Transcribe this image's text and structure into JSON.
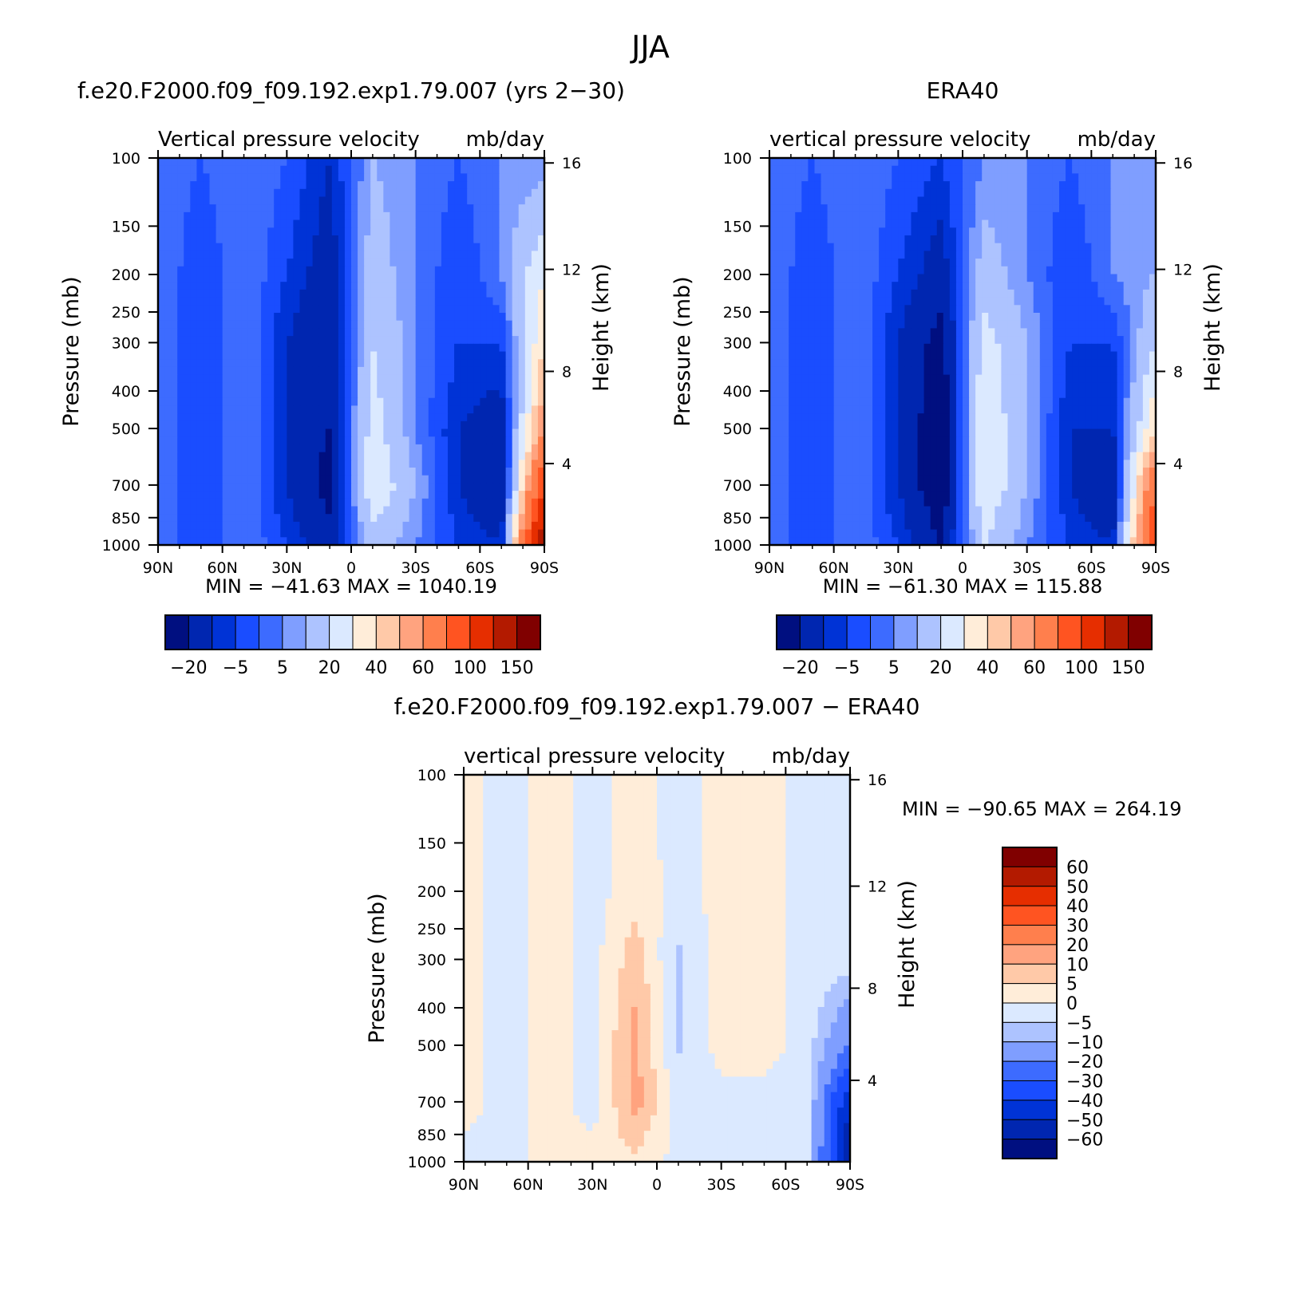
{
  "figure_title": "JJA",
  "palettes": {
    "abs": [
      "#000f80",
      "#0026b0",
      "#0033d6",
      "#1a4dff",
      "#3d6bff",
      "#7f9eff",
      "#adc3ff",
      "#dbe9ff",
      "#ffedd9",
      "#ffc9a8",
      "#ffa37f",
      "#ff7f4d",
      "#ff5421",
      "#e62e00",
      "#b31a00",
      "#800000"
    ],
    "diff": [
      "#000f80",
      "#0026b0",
      "#0033d6",
      "#1a4dff",
      "#3d6bff",
      "#7f9eff",
      "#adc3ff",
      "#dbe9ff",
      "#ffedd9",
      "#ffc9a8",
      "#ffa37f",
      "#ff7f4d",
      "#ff5421",
      "#e62e00",
      "#b31a00",
      "#800000"
    ]
  },
  "chart_data": [
    {
      "type": "heatmap",
      "title": "f.e20.F2000.f09_f09.192.exp1.79.007 (yrs 2−30)",
      "variable": "Vertical pressure velocity",
      "units": "mb/day",
      "xlabel": "",
      "ylabel": "Pressure (mb)",
      "y2label": "Height (km)",
      "x_ticks": [
        "90N",
        "60N",
        "30N",
        "0",
        "30S",
        "60S",
        "90S"
      ],
      "y_ticks": [
        100,
        150,
        200,
        250,
        300,
        400,
        500,
        700,
        850,
        1000
      ],
      "y2_ticks": [
        16,
        12,
        8,
        4
      ],
      "stats": "MIN = −41.63   MAX = 1040.19",
      "min": -41.63,
      "max": 1040.19,
      "colorbar_orientation": "horizontal",
      "colorbar_labels": [
        "−20",
        "−5",
        "5",
        "20",
        "40",
        "60",
        "100",
        "150"
      ],
      "colors": "abs",
      "field": {
        "x": [
          90,
          70,
          50,
          30,
          10,
          -10,
          -30,
          -50,
          -70,
          -90
        ],
        "p": [
          100,
          200,
          300,
          500,
          700,
          1000
        ],
        "values": [
          [
            5,
            0,
            5,
            0,
            -10,
            10,
            5,
            0,
            5,
            5
          ],
          [
            5,
            -5,
            5,
            -5,
            -15,
            15,
            5,
            -5,
            5,
            30
          ],
          [
            5,
            -5,
            5,
            -10,
            -20,
            20,
            5,
            -5,
            -5,
            40
          ],
          [
            5,
            -5,
            5,
            -10,
            -20,
            25,
            5,
            -10,
            -15,
            60
          ],
          [
            5,
            -5,
            5,
            -10,
            -25,
            30,
            10,
            -10,
            -20,
            100
          ],
          [
            5,
            -5,
            5,
            -5,
            -15,
            15,
            5,
            -5,
            -10,
            150
          ]
        ]
      }
    },
    {
      "type": "heatmap",
      "title": "ERA40",
      "variable": "vertical pressure velocity",
      "units": "mb/day",
      "xlabel": "",
      "ylabel": "Pressure (mb)",
      "y2label": "Height (km)",
      "x_ticks": [
        "90N",
        "60N",
        "30N",
        "0",
        "30S",
        "60S",
        "90S"
      ],
      "y_ticks": [
        100,
        150,
        200,
        250,
        300,
        400,
        500,
        700,
        850,
        1000
      ],
      "y2_ticks": [
        16,
        12,
        8,
        4
      ],
      "stats": "MIN = −61.30   MAX = 115.88",
      "min": -61.3,
      "max": 115.88,
      "colorbar_orientation": "horizontal",
      "colorbar_labels": [
        "−20",
        "−5",
        "5",
        "20",
        "40",
        "60",
        "100",
        "150"
      ],
      "colors": "abs",
      "field": {
        "x": [
          90,
          70,
          50,
          30,
          10,
          -10,
          -30,
          -50,
          -70,
          -90
        ],
        "p": [
          100,
          200,
          300,
          500,
          700,
          1000
        ],
        "values": [
          [
            5,
            0,
            5,
            0,
            -5,
            5,
            5,
            0,
            5,
            5
          ],
          [
            5,
            -5,
            5,
            -5,
            -15,
            15,
            5,
            -5,
            5,
            10
          ],
          [
            5,
            -5,
            5,
            -10,
            -25,
            25,
            10,
            -5,
            -5,
            20
          ],
          [
            5,
            -5,
            5,
            -10,
            -30,
            30,
            10,
            -10,
            -10,
            40
          ],
          [
            5,
            -5,
            5,
            -10,
            -30,
            30,
            10,
            -10,
            -20,
            80
          ],
          [
            5,
            -5,
            5,
            -5,
            -20,
            20,
            5,
            -5,
            -10,
            100
          ]
        ]
      }
    },
    {
      "type": "heatmap",
      "title": "f.e20.F2000.f09_f09.192.exp1.79.007 − ERA40",
      "variable": "vertical pressure velocity",
      "units": "mb/day",
      "xlabel": "",
      "ylabel": "Pressure (mb)",
      "y2label": "Height (km)",
      "x_ticks": [
        "90N",
        "60N",
        "30N",
        "0",
        "30S",
        "60S",
        "90S"
      ],
      "y_ticks": [
        100,
        150,
        200,
        250,
        300,
        400,
        500,
        700,
        850,
        1000
      ],
      "y2_ticks": [
        16,
        12,
        8,
        4
      ],
      "stats": "MIN = −90.65   MAX = 264.19",
      "min": -90.65,
      "max": 264.19,
      "colorbar_orientation": "vertical",
      "colorbar_labels": [
        "60",
        "50",
        "40",
        "30",
        "20",
        "10",
        "5",
        "0",
        "−5",
        "−10",
        "−20",
        "−30",
        "−40",
        "−50",
        "−60"
      ],
      "colors": "diff",
      "field": {
        "x": [
          90,
          70,
          50,
          30,
          10,
          -10,
          -30,
          -50,
          -70,
          -90
        ],
        "p": [
          100,
          200,
          300,
          500,
          700,
          1000
        ],
        "values": [
          [
            2,
            -2,
            2,
            -2,
            2,
            -2,
            2,
            2,
            -2,
            -2
          ],
          [
            2,
            -2,
            2,
            -2,
            3,
            -2,
            2,
            2,
            -2,
            -2
          ],
          [
            2,
            -2,
            2,
            -2,
            8,
            -6,
            2,
            2,
            -2,
            -2
          ],
          [
            2,
            -2,
            2,
            -2,
            12,
            -6,
            2,
            2,
            -2,
            -20
          ],
          [
            2,
            -2,
            2,
            -2,
            12,
            -2,
            -2,
            -2,
            -2,
            -50
          ],
          [
            -2,
            -2,
            2,
            2,
            4,
            -2,
            -2,
            -2,
            -2,
            -60
          ]
        ]
      }
    }
  ]
}
